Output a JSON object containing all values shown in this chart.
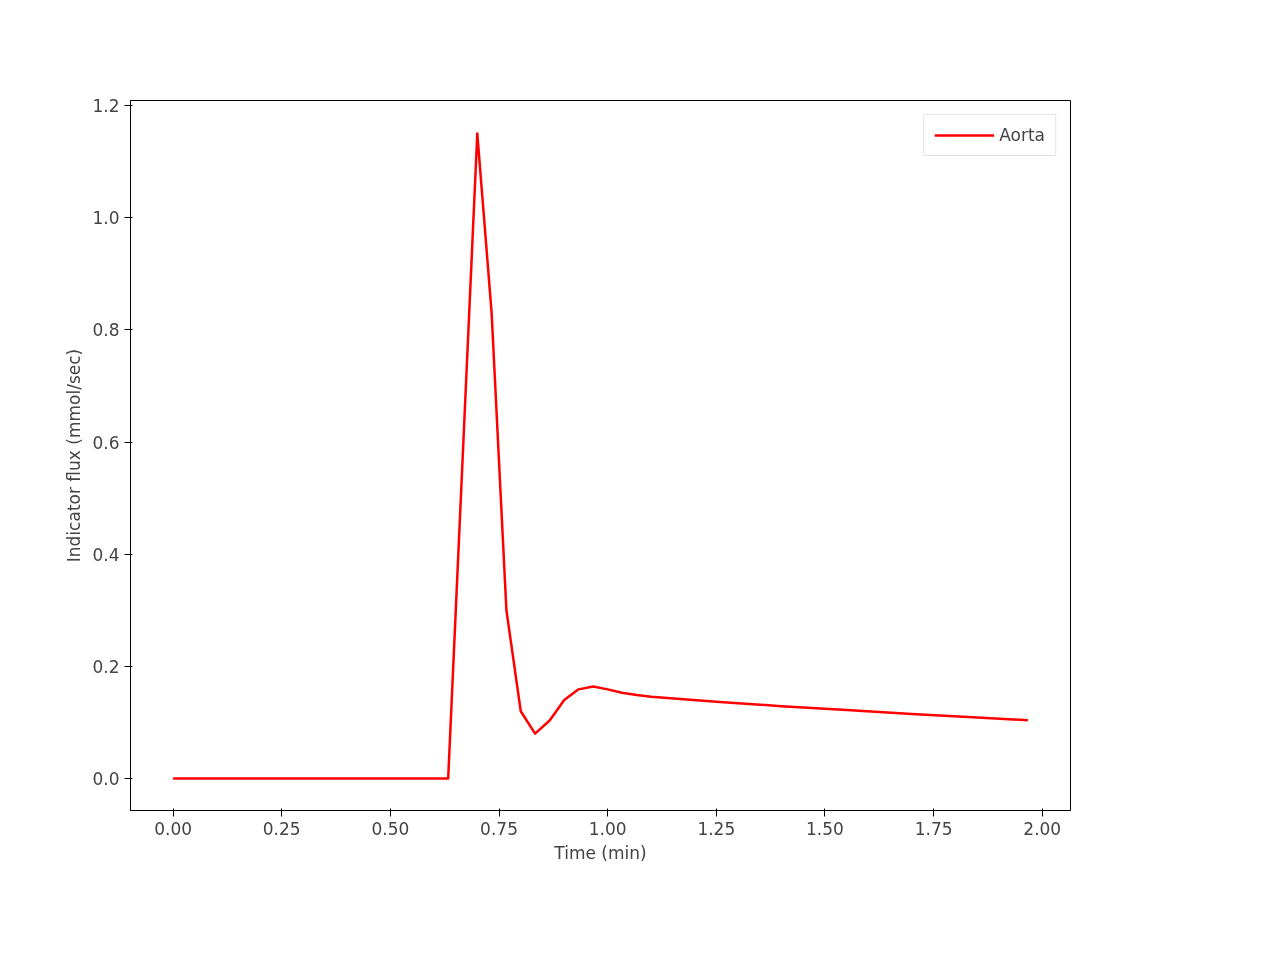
{
  "chart_data": {
    "type": "line",
    "xlabel": "Time (min)",
    "ylabel": "Indicator flux (mmol/sec)",
    "x": [
      0,
      0.633,
      0.7,
      0.733,
      0.767,
      0.8,
      0.833,
      0.867,
      0.9,
      0.933,
      0.967,
      1.0,
      1.033,
      1.067,
      1.1,
      1.25,
      1.4,
      1.55,
      1.7,
      1.85,
      1.967
    ],
    "series": [
      {
        "name": "Aorta",
        "color": "#ff0000",
        "values": [
          0,
          0,
          1.15,
          0.83,
          0.3,
          0.12,
          0.08,
          0.104,
          0.14,
          0.159,
          0.164,
          0.159,
          0.153,
          0.149,
          0.146,
          0.137,
          0.129,
          0.122,
          0.115,
          0.109,
          0.104
        ]
      }
    ],
    "xlim": [
      -0.098,
      2.065
    ],
    "ylim": [
      -0.057,
      1.209
    ],
    "xticks": [
      {
        "value": 0,
        "label": "0.00"
      },
      0.25,
      {
        "value": 0.5,
        "label": "0.50"
      },
      0.75,
      {
        "value": 1,
        "label": "1.00"
      },
      1.25,
      {
        "value": 1.5,
        "label": "1.50"
      },
      1.75,
      {
        "value": 2,
        "label": "2.00"
      }
    ],
    "yticks": [
      {
        "value": 0,
        "label": "0.0"
      },
      0.2,
      0.4,
      0.6,
      0.8,
      {
        "value": 1,
        "label": "1.0"
      },
      1.2
    ],
    "grid": false,
    "legend": "top right",
    "line_style": "solid"
  }
}
